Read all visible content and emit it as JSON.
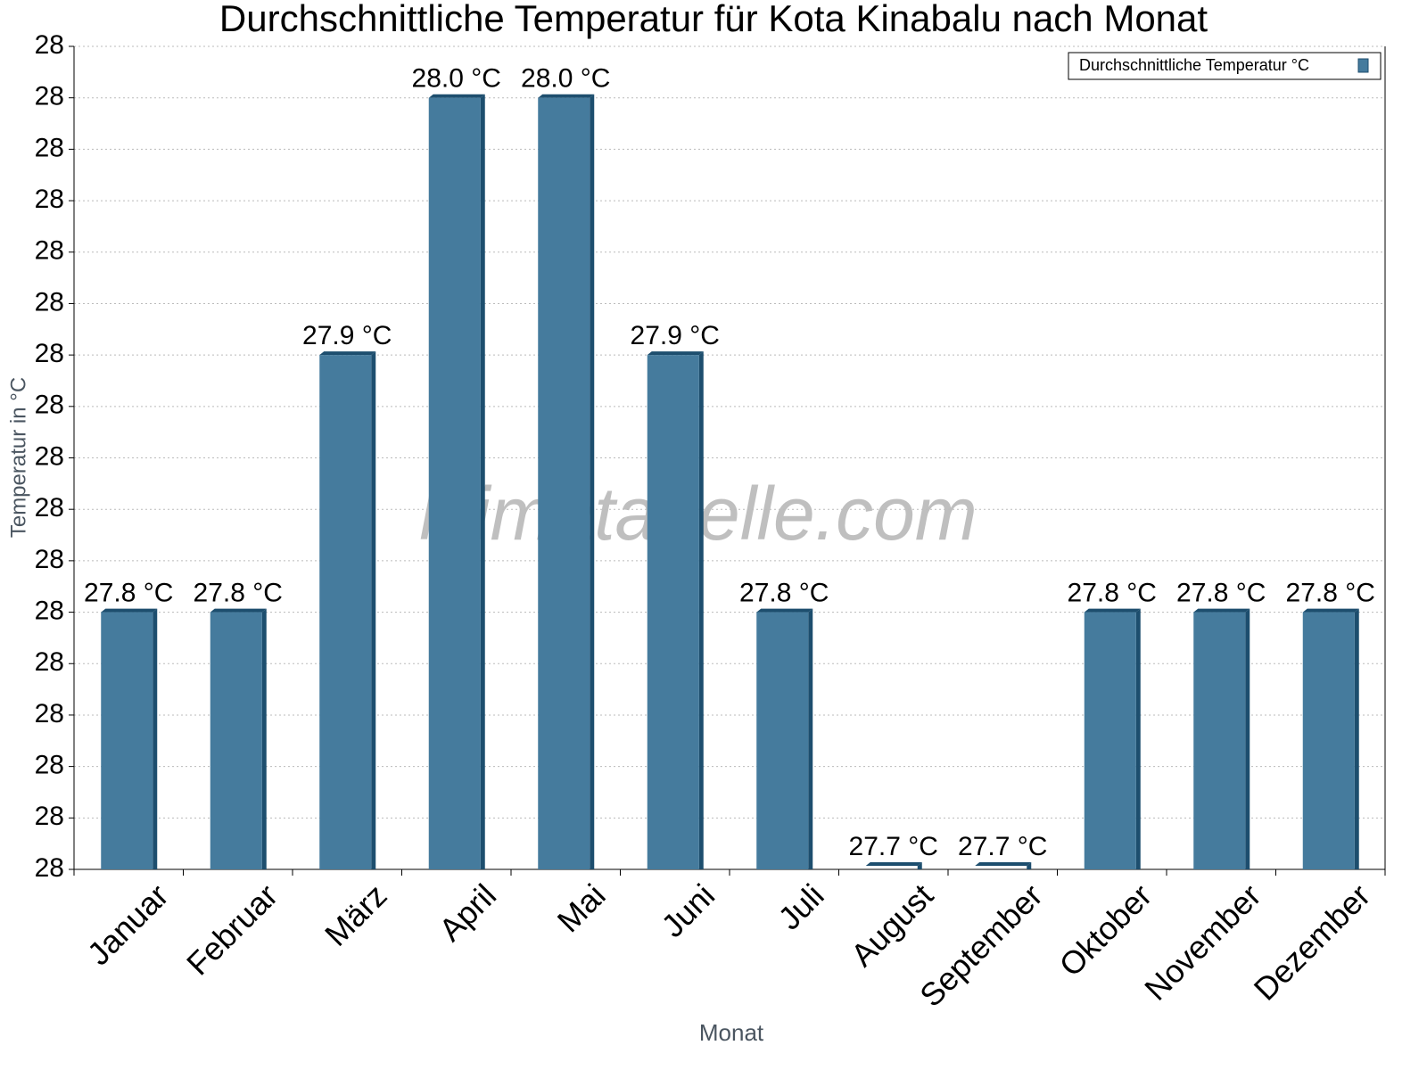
{
  "chart_data": {
    "type": "bar",
    "title": "Durchschnittliche Temperatur für Kota Kinabalu nach Monat",
    "x_label": "Monat",
    "y_label": "Temperatur in °C",
    "watermark": "klimatabelle.com",
    "categories": [
      "Januar",
      "Februar",
      "März",
      "April",
      "Mai",
      "Juni",
      "Juli",
      "August",
      "September",
      "Oktober",
      "November",
      "Dezember"
    ],
    "series": [
      {
        "name": "Durchschnittliche Temperatur °C",
        "color": "#457b9d",
        "values": [
          27.8,
          27.8,
          27.9,
          28.0,
          28.0,
          27.9,
          27.8,
          27.7,
          27.7,
          27.8,
          27.8,
          27.8
        ],
        "value_labels": [
          "27.8 °C",
          "27.8 °C",
          "27.9 °C",
          "28.0 °C",
          "28.0 °C",
          "27.9 °C",
          "27.8 °C",
          "27.7 °C",
          "27.7 °C",
          "27.8 °C",
          "27.8 °C",
          "27.8 °C"
        ]
      }
    ],
    "ylim": [
      27.7,
      28.02
    ],
    "yticks": [
      {
        "value": 27.7,
        "label": "28"
      },
      {
        "value": 27.72,
        "label": "28"
      },
      {
        "value": 27.74,
        "label": "28"
      },
      {
        "value": 27.76,
        "label": "28"
      },
      {
        "value": 27.78,
        "label": "28"
      },
      {
        "value": 27.8,
        "label": "28"
      },
      {
        "value": 27.82,
        "label": "28"
      },
      {
        "value": 27.84,
        "label": "28"
      },
      {
        "value": 27.86,
        "label": "28"
      },
      {
        "value": 27.88,
        "label": "28"
      },
      {
        "value": 27.9,
        "label": "28"
      },
      {
        "value": 27.92,
        "label": "28"
      },
      {
        "value": 27.94,
        "label": "28"
      },
      {
        "value": 27.96,
        "label": "28"
      },
      {
        "value": 27.98,
        "label": "28"
      },
      {
        "value": 28.0,
        "label": "28"
      },
      {
        "value": 28.02,
        "label": "28"
      }
    ],
    "grid": true,
    "legend": "top-right"
  }
}
